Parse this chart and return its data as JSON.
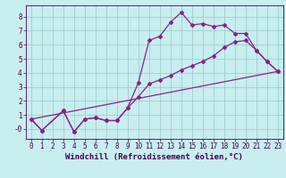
{
  "title": "",
  "xlabel": "Windchill (Refroidissement éolien,°C)",
  "background_color": "#c8eef0",
  "grid_color": "#9dcfcc",
  "line_color": "#882288",
  "xlim": [
    -0.5,
    23.5
  ],
  "ylim": [
    -0.7,
    8.8
  ],
  "xticks": [
    0,
    1,
    2,
    3,
    4,
    5,
    6,
    7,
    8,
    9,
    10,
    11,
    12,
    13,
    14,
    15,
    16,
    17,
    18,
    19,
    20,
    21,
    22,
    23
  ],
  "yticks": [
    0,
    1,
    2,
    3,
    4,
    5,
    6,
    7,
    8
  ],
  "ytick_labels": [
    "-0",
    "1",
    "2",
    "3",
    "4",
    "5",
    "6",
    "7",
    "8"
  ],
  "line1_x": [
    0,
    1,
    3,
    4,
    5,
    6,
    7,
    8,
    9,
    10,
    11,
    12,
    13,
    14,
    15,
    16,
    17,
    18,
    19,
    20,
    21,
    22,
    23
  ],
  "line1_y": [
    0.7,
    -0.1,
    1.3,
    -0.2,
    0.7,
    0.8,
    0.6,
    0.6,
    1.5,
    3.3,
    6.3,
    6.6,
    7.6,
    8.3,
    7.4,
    7.5,
    7.3,
    7.4,
    6.8,
    6.8,
    5.6,
    4.8,
    4.1
  ],
  "line2_x": [
    0,
    1,
    3,
    4,
    5,
    6,
    7,
    8,
    9,
    10,
    11,
    12,
    13,
    14,
    15,
    16,
    17,
    18,
    19,
    20,
    21,
    22,
    23
  ],
  "line2_y": [
    0.7,
    -0.1,
    1.3,
    -0.2,
    0.7,
    0.8,
    0.6,
    0.6,
    1.5,
    2.3,
    3.2,
    3.5,
    3.8,
    4.2,
    4.5,
    4.8,
    5.2,
    5.8,
    6.2,
    6.3,
    5.6,
    4.8,
    4.1
  ],
  "line3_x": [
    0,
    23
  ],
  "line3_y": [
    0.7,
    4.1
  ],
  "font_color": "#440055",
  "tick_label_size": 5.5,
  "xlabel_size": 6.5
}
